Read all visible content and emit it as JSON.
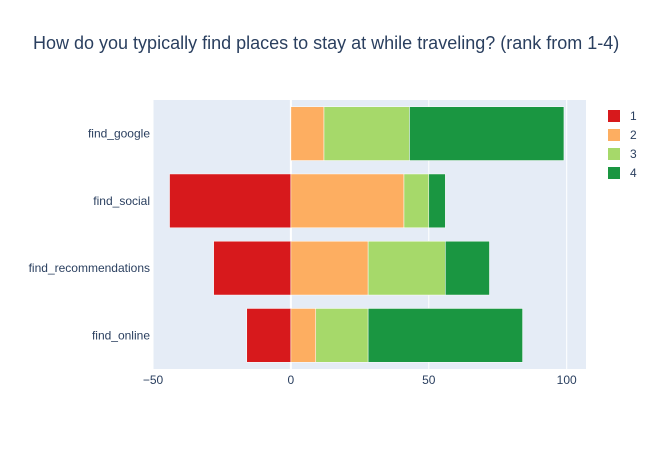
{
  "chart_data": {
    "type": "bar",
    "orientation": "horizontal",
    "barmode": "relative",
    "title": "How do you typically find places to stay at while traveling? (rank from 1-4)",
    "xlabel": "",
    "ylabel": "",
    "xlim": [
      -50,
      107
    ],
    "xticks": [
      -50,
      0,
      50,
      100
    ],
    "grid": true,
    "legend_position": "right",
    "categories": [
      "find_google",
      "find_social",
      "find_recommendations",
      "find_online"
    ],
    "series": [
      {
        "name": "1",
        "color": "#d7191c",
        "values": [
          0,
          -44,
          -28,
          -16
        ]
      },
      {
        "name": "2",
        "color": "#fdae61",
        "values": [
          12,
          41,
          28,
          9
        ]
      },
      {
        "name": "3",
        "color": "#a6d96a",
        "values": [
          31,
          9,
          28,
          19
        ]
      },
      {
        "name": "4",
        "color": "#1a9641",
        "values": [
          56,
          6,
          16,
          56
        ]
      }
    ]
  }
}
